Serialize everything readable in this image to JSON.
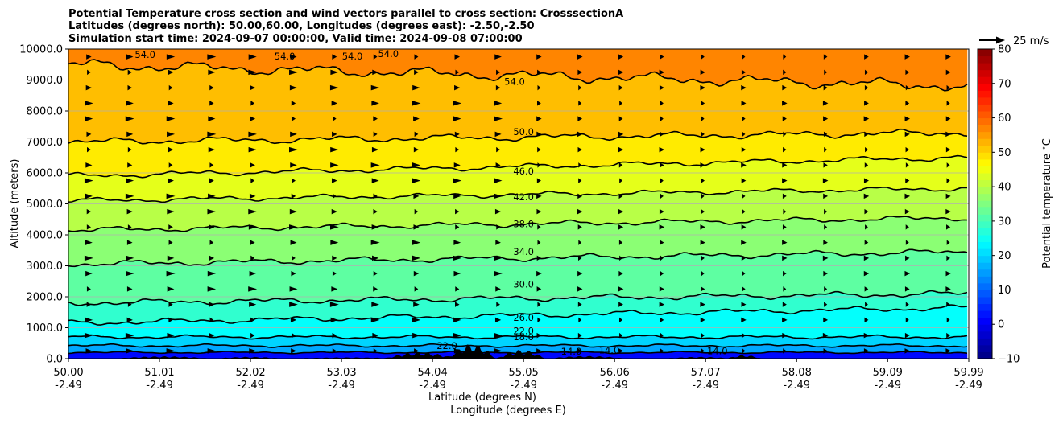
{
  "chart_data": {
    "type": "contour",
    "title_lines": [
      "Potential Temperature cross section and wind vectors parallel to cross section: CrosssectionA",
      "Latitudes (degrees north): 50.00,60.00, Longitudes (degrees east): -2.50,-2.50",
      "Simulation start time: 2024-09-07 00:00:00, Valid time: 2024-09-08 07:00:00"
    ],
    "ylabel": "Altitude (meters)",
    "xlabel_lines": [
      "Latitude (degrees N)",
      "Longitude (degrees E)"
    ],
    "yticks": [
      "0.0",
      "1000.0",
      "2000.0",
      "3000.0",
      "4000.0",
      "5000.0",
      "6000.0",
      "7000.0",
      "8000.0",
      "9000.0",
      "10000.0"
    ],
    "ylim": [
      0,
      10000
    ],
    "xticks_lat": [
      "50.00",
      "51.01",
      "52.02",
      "53.03",
      "54.04",
      "55.05",
      "56.06",
      "57.07",
      "58.08",
      "59.09",
      "59.99"
    ],
    "xticks_lon": [
      "-2.49",
      "-2.49",
      "-2.49",
      "-2.49",
      "-2.49",
      "-2.49",
      "-2.49",
      "-2.49",
      "-2.49",
      "-2.49",
      "-2.49"
    ],
    "xlim": [
      50.0,
      59.99
    ],
    "grid": "horizontal",
    "colorbar": {
      "label": "Potential temperature $^\\circ$C",
      "ticks": [
        "80",
        "70",
        "60",
        "50",
        "40",
        "30",
        "20",
        "10",
        "0",
        "−10"
      ],
      "range": [
        -10,
        80
      ],
      "colormap": "jet"
    },
    "quiver_key": "25 m/s",
    "contour_labels": [
      {
        "text": "54.0",
        "lat": 50.85,
        "alt": 9820
      },
      {
        "text": "54.0",
        "lat": 52.4,
        "alt": 9770
      },
      {
        "text": "54.0",
        "lat": 53.15,
        "alt": 9770
      },
      {
        "text": "54.0",
        "lat": 53.55,
        "alt": 9840
      },
      {
        "text": "54.0",
        "lat": 54.95,
        "alt": 8950
      },
      {
        "text": "50.0",
        "lat": 55.05,
        "alt": 7320
      },
      {
        "text": "46.0",
        "lat": 55.05,
        "alt": 6050
      },
      {
        "text": "42.0",
        "lat": 55.05,
        "alt": 5220
      },
      {
        "text": "38.0",
        "lat": 55.05,
        "alt": 4350
      },
      {
        "text": "34.0",
        "lat": 55.05,
        "alt": 3450
      },
      {
        "text": "30.0",
        "lat": 55.05,
        "alt": 2400
      },
      {
        "text": "26.0",
        "lat": 55.05,
        "alt": 1330
      },
      {
        "text": "22.0",
        "lat": 55.05,
        "alt": 900
      },
      {
        "text": "18.0",
        "lat": 55.05,
        "alt": 700
      },
      {
        "text": "22.0",
        "lat": 54.2,
        "alt": 420
      },
      {
        "text": "14.0",
        "lat": 55.58,
        "alt": 230
      },
      {
        "text": "14.0",
        "lat": 56.0,
        "alt": 270
      },
      {
        "text": "14.0",
        "lat": 57.2,
        "alt": 250
      }
    ]
  }
}
